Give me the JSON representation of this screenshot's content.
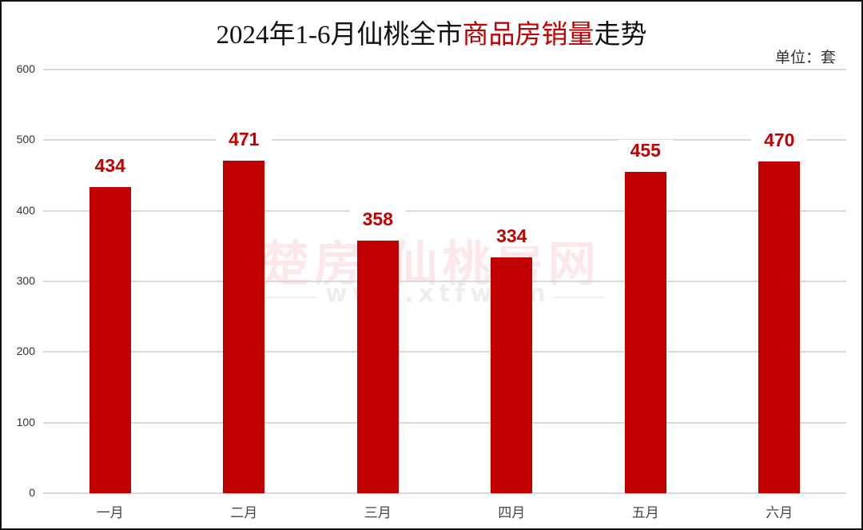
{
  "chart_data": {
    "type": "bar",
    "title": "2024年1-6月仙桃全市商品房销量走势",
    "title_parts": [
      {
        "text": "2024年1-6月仙桃全市",
        "highlight": false
      },
      {
        "text": "商品房销量",
        "highlight": true
      },
      {
        "text": "走势",
        "highlight": false
      }
    ],
    "unit_label": "单位：套",
    "categories": [
      "一月",
      "二月",
      "三月",
      "四月",
      "五月",
      "六月"
    ],
    "values": [
      434,
      471,
      358,
      334,
      455,
      470
    ],
    "xlabel": "",
    "ylabel": "",
    "ylim": [
      0,
      600
    ],
    "yticks": [
      0,
      100,
      200,
      300,
      400,
      500,
      600
    ],
    "grid": true,
    "legend": null,
    "bar_color": "#c00000",
    "highlight_color": "#c00000",
    "data_labels": true
  },
  "watermark": {
    "main": "楚房·仙桃房网",
    "sub": "www.xtfw.cn"
  }
}
